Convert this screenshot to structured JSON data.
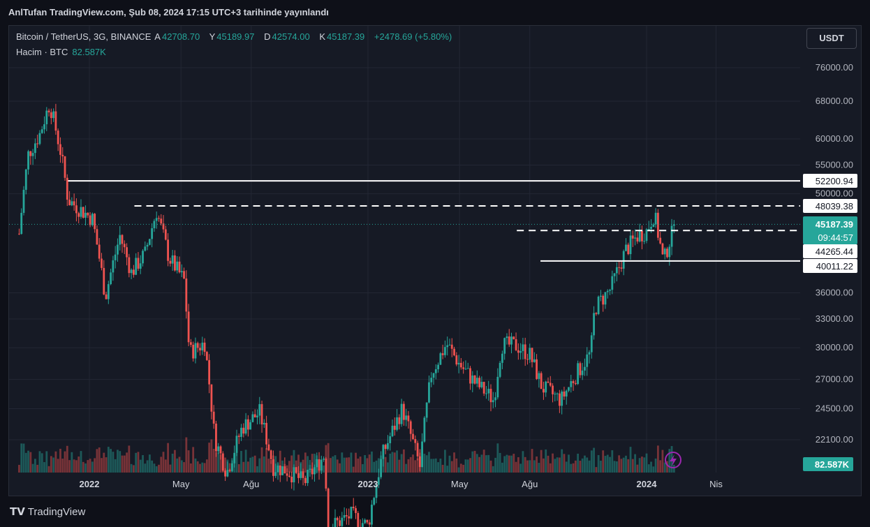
{
  "header": {
    "published": "AnlTufan TradingView.com, Şub 08, 2024 17:15 UTC+3 tarihinde yayınlandı"
  },
  "legend": {
    "symbol": "Bitcoin / TetherUS, 3G, BINANCE",
    "open_label": "A",
    "open": "42708.70",
    "high_label": "Y",
    "high": "45189.97",
    "low_label": "D",
    "low": "42574.00",
    "close_label": "K",
    "close": "45187.39",
    "change": "+2478.69 (+5.80%)",
    "volume_label": "Hacim · BTC",
    "volume": "82.587K"
  },
  "currency_button": "USDT",
  "footer": {
    "brand": "TradingView"
  },
  "colors": {
    "up": "#26a69a",
    "down": "#ef5350",
    "background": "#161a25",
    "line": "#ffffff"
  },
  "chart_data": {
    "type": "candlestick",
    "y_scale": "log",
    "ylim": [
      20500,
      85000
    ],
    "price_ticks": [
      "76000.00",
      "68000.00",
      "60000.00",
      "55000.00",
      "50000.00",
      "36000.00",
      "33000.00",
      "30000.00",
      "27000.00",
      "24500.00",
      "22100.00"
    ],
    "x_ticks": [
      "2022",
      "May",
      "Ağu",
      "2023",
      "May",
      "Ağu",
      "2024",
      "Nis"
    ],
    "price_labels": [
      {
        "text": "52200.94",
        "kind": "level"
      },
      {
        "text": "48039.38",
        "kind": "level"
      },
      {
        "text": "45187.39",
        "kind": "last"
      },
      {
        "text": "09:44:57",
        "kind": "countdown"
      },
      {
        "text": "44265.44",
        "kind": "level"
      },
      {
        "text": "40011.22",
        "kind": "level"
      }
    ],
    "horizontal_lines": [
      {
        "price": 52200.94,
        "style": "solid",
        "from": "2021-12-04",
        "to": "2024-06-01"
      },
      {
        "price": 48039.38,
        "style": "dashed",
        "from": "2022-03-01",
        "to": "2024-06-01"
      },
      {
        "price": 44265.44,
        "style": "dashed",
        "from": "2023-07-15",
        "to": "2024-06-01"
      },
      {
        "price": 40011.22,
        "style": "solid",
        "from": "2023-08-15",
        "to": "2024-06-01"
      },
      {
        "price": 45187.39,
        "style": "dotted",
        "from": "2021-09-30",
        "to": "2024-06-01"
      }
    ],
    "volume_label": "82.587K",
    "series": [
      {
        "date": "2021-10-01",
        "c": 43800
      },
      {
        "date": "2021-10-13",
        "c": 57000
      },
      {
        "date": "2021-10-28",
        "c": 61000
      },
      {
        "date": "2021-11-10",
        "c": 67500
      },
      {
        "date": "2021-11-25",
        "c": 57000
      },
      {
        "date": "2021-12-04",
        "c": 49000
      },
      {
        "date": "2021-12-20",
        "c": 47500
      },
      {
        "date": "2022-01-05",
        "c": 46000
      },
      {
        "date": "2022-01-22",
        "c": 35500
      },
      {
        "date": "2022-02-10",
        "c": 43500
      },
      {
        "date": "2022-02-25",
        "c": 38500
      },
      {
        "date": "2022-03-15",
        "c": 41000
      },
      {
        "date": "2022-03-30",
        "c": 47200
      },
      {
        "date": "2022-04-15",
        "c": 40500
      },
      {
        "date": "2022-05-05",
        "c": 37500
      },
      {
        "date": "2022-05-12",
        "c": 29500
      },
      {
        "date": "2022-06-01",
        "c": 30500
      },
      {
        "date": "2022-06-14",
        "c": 22200
      },
      {
        "date": "2022-06-30",
        "c": 19800
      },
      {
        "date": "2022-07-20",
        "c": 23000
      },
      {
        "date": "2022-08-12",
        "c": 24200
      },
      {
        "date": "2022-08-30",
        "c": 20200
      },
      {
        "date": "2022-09-15",
        "c": 20000
      },
      {
        "date": "2022-10-10",
        "c": 19200
      },
      {
        "date": "2022-11-05",
        "c": 21000
      },
      {
        "date": "2022-11-10",
        "c": 16500
      },
      {
        "date": "2022-12-10",
        "c": 17200
      },
      {
        "date": "2023-01-01",
        "c": 16600
      },
      {
        "date": "2023-01-20",
        "c": 21000
      },
      {
        "date": "2023-02-15",
        "c": 24500
      },
      {
        "date": "2023-03-10",
        "c": 20200
      },
      {
        "date": "2023-03-25",
        "c": 27500
      },
      {
        "date": "2023-04-14",
        "c": 30400
      },
      {
        "date": "2023-04-30",
        "c": 28500
      },
      {
        "date": "2023-05-20",
        "c": 26800
      },
      {
        "date": "2023-06-15",
        "c": 25200
      },
      {
        "date": "2023-06-25",
        "c": 30300
      },
      {
        "date": "2023-07-15",
        "c": 30200
      },
      {
        "date": "2023-08-01",
        "c": 29300
      },
      {
        "date": "2023-08-17",
        "c": 26300
      },
      {
        "date": "2023-09-11",
        "c": 25200
      },
      {
        "date": "2023-10-01",
        "c": 27500
      },
      {
        "date": "2023-10-20",
        "c": 29500
      },
      {
        "date": "2023-10-25",
        "c": 34200
      },
      {
        "date": "2023-11-15",
        "c": 36500
      },
      {
        "date": "2023-12-05",
        "c": 41500
      },
      {
        "date": "2023-12-20",
        "c": 43500
      },
      {
        "date": "2024-01-01",
        "c": 44200
      },
      {
        "date": "2024-01-11",
        "c": 46800
      },
      {
        "date": "2024-01-23",
        "c": 39800
      },
      {
        "date": "2024-02-01",
        "c": 43100
      },
      {
        "date": "2024-02-08",
        "c": 45187
      }
    ]
  }
}
